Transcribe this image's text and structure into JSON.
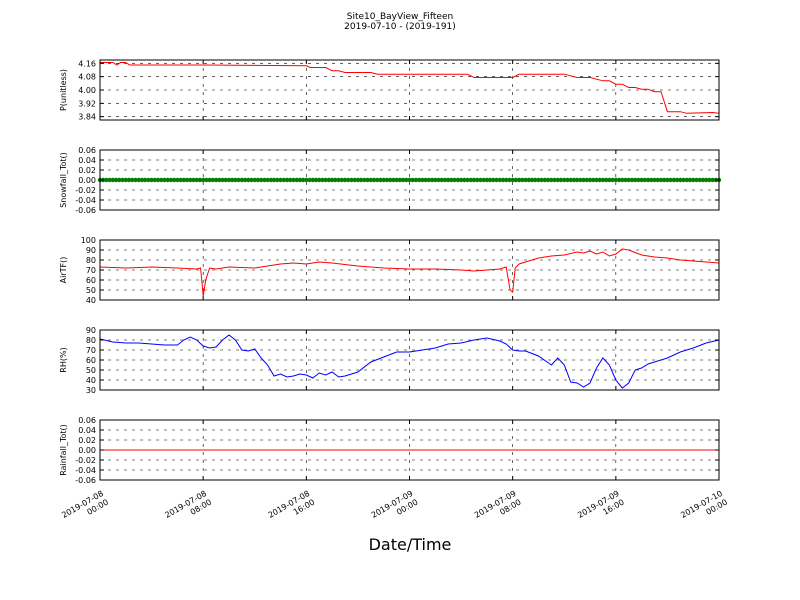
{
  "figure": {
    "title_line1": "Site10_BayView_Fifteen",
    "title_line2": "2019-07-10 - (2019-191)",
    "xlabel": "Date/Time"
  },
  "x_ticks": [
    {
      "line1": "2019-07-08",
      "line2": "00:00",
      "hour": 0
    },
    {
      "line1": "2019-07-08",
      "line2": "08:00",
      "hour": 8
    },
    {
      "line1": "2019-07-08",
      "line2": "16:00",
      "hour": 16
    },
    {
      "line1": "2019-07-09",
      "line2": "00:00",
      "hour": 24
    },
    {
      "line1": "2019-07-09",
      "line2": "08:00",
      "hour": 32
    },
    {
      "line1": "2019-07-09",
      "line2": "16:00",
      "hour": 40
    },
    {
      "line1": "2019-07-10",
      "line2": "00:00",
      "hour": 48
    }
  ],
  "chart_data": [
    {
      "type": "line",
      "ylabel": "P(unitless)",
      "ylim": [
        3.82,
        4.18
      ],
      "yticks": [
        "4.16",
        "4.08",
        "4.00",
        "3.92",
        "3.84"
      ],
      "ytick_values": [
        4.16,
        4.08,
        4.0,
        3.92,
        3.84
      ],
      "grid": true,
      "color": "#ff0000",
      "x_hours": [
        0,
        1,
        1.3,
        1.6,
        2,
        2.3,
        2.6,
        3,
        8,
        16,
        16.3,
        17.5,
        18,
        18.5,
        19,
        19.5,
        21,
        21.5,
        28.5,
        29,
        30,
        31,
        32,
        32.5,
        33,
        36,
        37,
        38,
        39,
        39.5,
        40,
        40.5,
        41,
        41.5,
        42,
        42.5,
        43,
        43.5,
        44,
        45,
        45.5,
        47.5,
        48
      ],
      "values": [
        4.165,
        4.165,
        4.15,
        4.165,
        4.165,
        4.15,
        4.15,
        4.15,
        4.15,
        4.145,
        4.135,
        4.135,
        4.115,
        4.115,
        4.105,
        4.105,
        4.105,
        4.095,
        4.095,
        4.075,
        4.075,
        4.075,
        4.075,
        4.095,
        4.095,
        4.095,
        4.075,
        4.075,
        4.055,
        4.055,
        4.035,
        4.035,
        4.015,
        4.015,
        4.005,
        4.005,
        3.99,
        3.99,
        3.87,
        3.87,
        3.86,
        3.865,
        3.86
      ]
    },
    {
      "type": "scatter",
      "ylabel": "Snowfall_Tot()",
      "ylim": [
        -0.06,
        0.06
      ],
      "yticks": [
        "0.06",
        "0.04",
        "0.02",
        "0.00",
        "-0.02",
        "-0.04",
        "-0.06"
      ],
      "ytick_values": [
        0.06,
        0.04,
        0.02,
        0.0,
        -0.02,
        -0.04,
        -0.06
      ],
      "grid": true,
      "color": "#008000",
      "constant_value": 0.0,
      "x_range_hours": [
        0,
        48
      ],
      "step_hours": 0.25
    },
    {
      "type": "line",
      "ylabel": "AirTF()",
      "ylim": [
        40,
        100
      ],
      "yticks": [
        "100",
        "90",
        "80",
        "70",
        "60",
        "50",
        "40"
      ],
      "ytick_values": [
        100,
        90,
        80,
        70,
        60,
        50,
        40
      ],
      "grid": true,
      "color": "#ff0000",
      "x_hours": [
        0,
        2,
        4,
        6,
        7.5,
        7.8,
        8,
        8.2,
        8.5,
        9,
        10,
        12,
        13,
        14,
        15,
        16,
        17,
        18,
        20,
        22,
        24,
        26,
        28,
        29,
        30,
        31,
        31.5,
        31.8,
        32,
        32.2,
        32.5,
        33,
        34,
        35,
        36,
        37,
        37.5,
        38,
        38.5,
        39,
        39.5,
        40,
        40.5,
        41,
        42,
        43,
        44,
        45,
        46,
        47,
        48
      ],
      "values": [
        73,
        72,
        73,
        72,
        71,
        72,
        44,
        60,
        72,
        71,
        73,
        72,
        74,
        76,
        77,
        76,
        78,
        77,
        74,
        72,
        71,
        71,
        70,
        69,
        70,
        71,
        73,
        50,
        48,
        72,
        76,
        78,
        82,
        84,
        85,
        88,
        87,
        89,
        86,
        88,
        84,
        86,
        91,
        90,
        85,
        83,
        82,
        80,
        79,
        78,
        77
      ]
    },
    {
      "type": "line",
      "ylabel": "RH(%)",
      "ylim": [
        30,
        90
      ],
      "yticks": [
        "90",
        "80",
        "70",
        "60",
        "50",
        "40",
        "30"
      ],
      "ytick_values": [
        90,
        80,
        70,
        60,
        50,
        40,
        30
      ],
      "grid": true,
      "color": "#0000ff",
      "x_hours": [
        0,
        1,
        2,
        3,
        4,
        5,
        6,
        6.5,
        7,
        7.5,
        8,
        8.5,
        9,
        9.5,
        10,
        10.5,
        11,
        11.5,
        12,
        12.5,
        13,
        13.5,
        14,
        14.5,
        15,
        15.5,
        16,
        16.5,
        17,
        17.5,
        18,
        18.5,
        19,
        19.5,
        20,
        21,
        22,
        23,
        24,
        25,
        26,
        27,
        28,
        29,
        30,
        31,
        31.5,
        32,
        32.5,
        33,
        34,
        35,
        35.5,
        36,
        36.5,
        37,
        37.5,
        38,
        38.5,
        39,
        39.5,
        40,
        40.5,
        41,
        41.5,
        42,
        42.5,
        43,
        44,
        45,
        46,
        47,
        48
      ],
      "values": [
        81,
        78,
        77,
        77,
        76,
        75,
        75,
        80,
        83,
        80,
        74,
        72,
        73,
        80,
        85,
        80,
        70,
        69,
        71,
        62,
        55,
        44,
        46,
        43,
        44,
        46,
        45,
        42,
        47,
        45,
        48,
        43,
        44,
        46,
        48,
        58,
        63,
        68,
        68,
        70,
        72,
        76,
        77,
        80,
        82,
        79,
        76,
        70,
        69,
        69,
        64,
        55,
        62,
        55,
        38,
        37,
        33,
        37,
        52,
        62,
        55,
        40,
        32,
        37,
        50,
        52,
        56,
        58,
        62,
        68,
        72,
        77,
        80
      ]
    },
    {
      "type": "line",
      "ylabel": "Rainfall_Tot()",
      "ylim": [
        -0.06,
        0.06
      ],
      "yticks": [
        "0.06",
        "0.04",
        "0.02",
        "0.00",
        "-0.02",
        "-0.04",
        "-0.06"
      ],
      "ytick_values": [
        0.06,
        0.04,
        0.02,
        0.0,
        -0.02,
        -0.04,
        -0.06
      ],
      "grid": true,
      "color": "#ff0000",
      "constant_value": 0.0,
      "x_range_hours": [
        0,
        48
      ]
    }
  ]
}
